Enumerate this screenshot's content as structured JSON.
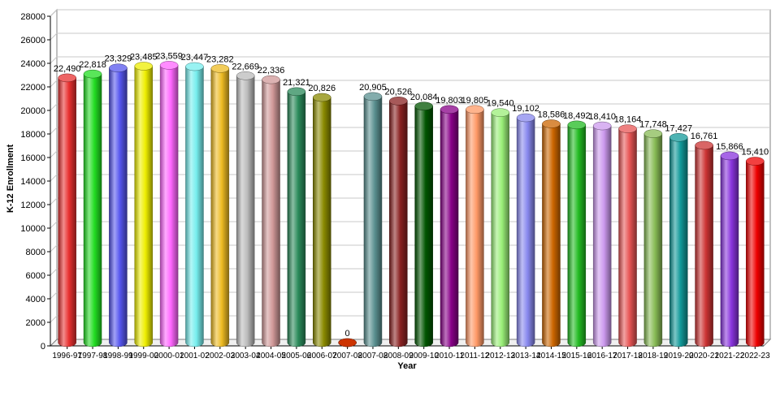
{
  "chart_data": {
    "type": "bar",
    "title": "",
    "xlabel": "Year",
    "ylabel": "K-12 Enrollment",
    "ylim": [
      0,
      28000
    ],
    "ytick_step": 2000,
    "grid": true,
    "categories": [
      "1996-97",
      "1997-98",
      "1998-99",
      "1999-00",
      "2000-01",
      "2001-02",
      "2002-03",
      "2003-04",
      "2004-05",
      "2005-06",
      "2006-07",
      "2007-08",
      "2007-08",
      "2008-09",
      "2009-10",
      "2010-11",
      "2011-12",
      "2012-13",
      "2013-14",
      "2014-15",
      "2015-16",
      "2016-17",
      "2017-18",
      "2018-19",
      "2019-20",
      "2020-21",
      "2021-22",
      "2022-23"
    ],
    "values": [
      22490,
      22818,
      23329,
      23485,
      23559,
      23447,
      23282,
      22669,
      22336,
      21321,
      20826,
      0,
      20905,
      20526,
      20084,
      19803,
      19805,
      19540,
      19102,
      18586,
      18492,
      18410,
      18164,
      17748,
      17427,
      16761,
      15866,
      15410
    ],
    "value_labels": [
      "22,490",
      "22,818",
      "23,329",
      "23,485",
      "23,559",
      "23,447",
      "23,282",
      "22,669",
      "22,336",
      "21,321",
      "20,826",
      "0",
      "20,905",
      "20,526",
      "20,084",
      "19,803",
      "19,805",
      "19,540",
      "19,102",
      "18,586",
      "18,492",
      "18,410",
      "18,164",
      "17,748",
      "17,427",
      "16,761",
      "15,866",
      "15,410"
    ],
    "colors": [
      "#e83030",
      "#22dd22",
      "#5555ee",
      "#eeee00",
      "#ff66ff",
      "#77eeee",
      "#eebb22",
      "#bbbbbb",
      "#d09898",
      "#2a8a5a",
      "#8a8a00",
      "#cc3300",
      "#5a9090",
      "#8a2222",
      "#005500",
      "#880088",
      "#ff9966",
      "#99ee77",
      "#8888ee",
      "#cc6600",
      "#22bb22",
      "#cc99ee",
      "#e85555",
      "#88bb55",
      "#119999",
      "#cc3333",
      "#8833dd",
      "#ee0000"
    ]
  }
}
